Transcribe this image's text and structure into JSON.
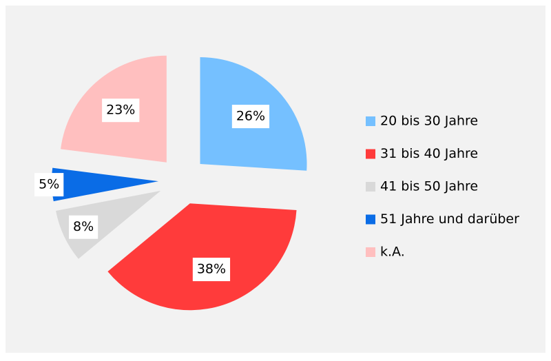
{
  "chart_data": {
    "type": "pie",
    "categories": [
      "20 bis 30 Jahre",
      "31 bis 40 Jahre",
      "41 bis 50 Jahre",
      "51 Jahre und darüber",
      "k.A."
    ],
    "values": [
      26,
      38,
      8,
      5,
      23
    ],
    "value_labels": [
      "26%",
      "38%",
      "8%",
      "5%",
      "23%"
    ],
    "colors": [
      "#75c0ff",
      "#ff3b3b",
      "#d9d9d9",
      "#0a6ce6",
      "#ffbfbf"
    ],
    "exploded": true,
    "legend": "right"
  }
}
